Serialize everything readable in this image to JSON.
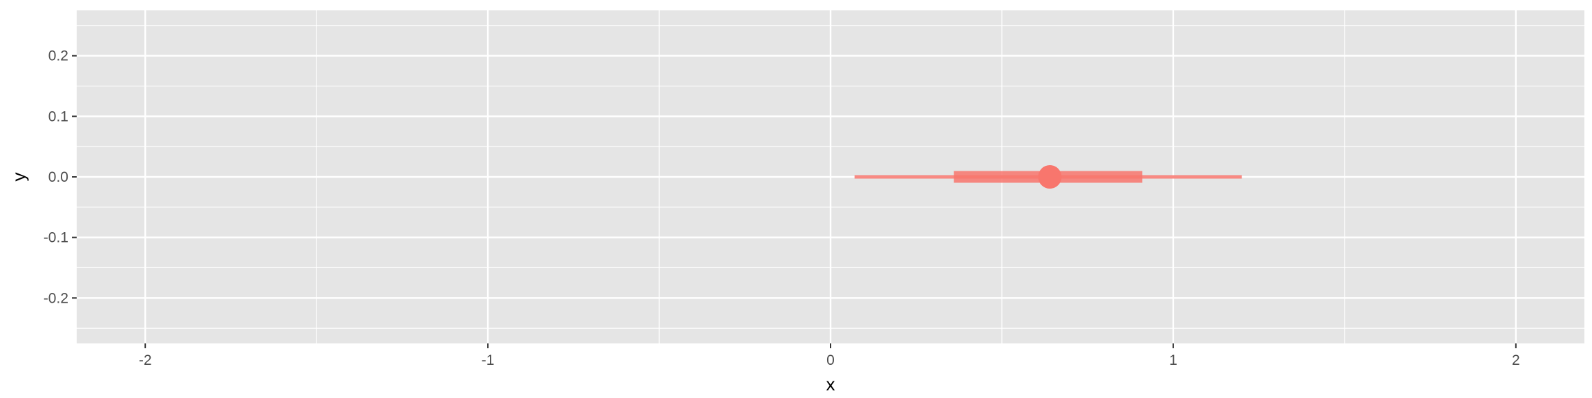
{
  "chart_data": {
    "type": "pointinterval",
    "title": "",
    "xlabel": "x",
    "ylabel": "y",
    "xlim": [
      -2.2,
      2.2
    ],
    "ylim": [
      -0.275,
      0.275
    ],
    "x_ticks": [
      -2,
      -1,
      0,
      1,
      2
    ],
    "x_tick_labels": [
      "-2",
      "-1",
      "0",
      "1",
      "2"
    ],
    "y_ticks": [
      -0.2,
      -0.1,
      0.0,
      0.1,
      0.2
    ],
    "y_tick_labels": [
      "-0.2",
      "-0.1",
      "0.0",
      "0.1",
      "0.2"
    ],
    "grid": true,
    "series": [
      {
        "y": 0.0,
        "point": 0.64,
        "interval_inner": [
          0.36,
          0.91
        ],
        "interval_outer": [
          0.07,
          1.2
        ],
        "color": "#F8766D"
      }
    ]
  },
  "colors": {
    "panel_background": "#E5E5E5",
    "grid_major": "#FFFFFF",
    "tick_mark": "#333333",
    "series": "#F8766D"
  }
}
